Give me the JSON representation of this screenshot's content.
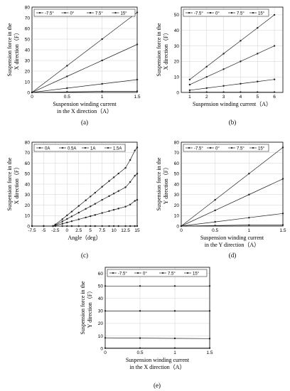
{
  "chart_data": [
    {
      "type": "line",
      "panel_label": "(a)",
      "xlabel_lines": [
        "Suspension winding current",
        "in the X direction（A）"
      ],
      "ylabel_lines": [
        "Suspension force in the",
        "X direction（F）"
      ],
      "xlim": [
        0,
        1.5
      ],
      "ylim": [
        0,
        80
      ],
      "xticks": [
        "0",
        "0.5",
        "1",
        "1.5"
      ],
      "yticks": [
        "0",
        "10",
        "20",
        "30",
        "40",
        "50",
        "60",
        "70",
        "80"
      ],
      "grid": true,
      "legend_position": "top",
      "x": [
        0,
        0.5,
        1,
        1.5
      ],
      "series": [
        {
          "name": "-7.5°",
          "marker": "dot",
          "values": [
            0,
            25,
            50,
            75
          ]
        },
        {
          "name": "0°",
          "marker": "dot",
          "values": [
            0,
            15,
            30,
            45
          ]
        },
        {
          "name": "7.5°",
          "marker": "dot",
          "values": [
            0,
            4,
            8,
            12
          ]
        },
        {
          "name": "15°",
          "marker": "dot",
          "values": [
            0,
            0.5,
            1,
            1
          ]
        }
      ]
    },
    {
      "type": "line",
      "panel_label": "(b)",
      "xlabel_lines": [
        "Suspension winding current（A）"
      ],
      "ylabel_lines": [
        "Suspension force in the",
        "X direction（F）"
      ],
      "xlim": [
        0.5,
        6.5
      ],
      "ylim": [
        0,
        55
      ],
      "xticks": [
        "1",
        "2",
        "3",
        "4",
        "5",
        "6"
      ],
      "yticks": [
        "0",
        "10",
        "20",
        "30",
        "40",
        "50"
      ],
      "grid": true,
      "legend_position": "top",
      "x": [
        1,
        2,
        3,
        4,
        5,
        6
      ],
      "series": [
        {
          "name": "-7.5°",
          "marker": "dot",
          "values": [
            8.3,
            16.6,
            25,
            33.3,
            41.6,
            50
          ]
        },
        {
          "name": "0°",
          "marker": "dot",
          "values": [
            5,
            10,
            15,
            20,
            25,
            30
          ]
        },
        {
          "name": "7.5°",
          "marker": "dot",
          "values": [
            1.4,
            2.8,
            4.2,
            5.6,
            7,
            8.4
          ]
        },
        {
          "name": "15°",
          "marker": "dot",
          "values": [
            0.1,
            0.2,
            0.2,
            0.2,
            0.2,
            0.2
          ]
        }
      ]
    },
    {
      "type": "line",
      "panel_label": "(c)",
      "xlabel_lines": [
        "Angle（deg）"
      ],
      "ylabel_lines": [
        "Suspension force in the",
        "X direction（F）"
      ],
      "xlim": [
        -7.5,
        15
      ],
      "ylim": [
        0,
        80
      ],
      "xticks": [
        "-7.5",
        "-5",
        "-2.5",
        "0",
        "2.5",
        "5",
        "7.5",
        "10",
        "12.5",
        "15"
      ],
      "yticks": [
        "0",
        "10",
        "20",
        "30",
        "40",
        "50",
        "60",
        "70",
        "80"
      ],
      "grid": true,
      "legend_position": "top",
      "x": [
        -7.5,
        -5,
        -3,
        -2.5,
        -1,
        0,
        1,
        2.5,
        4,
        5,
        6,
        7.5,
        9,
        10,
        11,
        12.5,
        13.5,
        14.5,
        15
      ],
      "series": [
        {
          "name": "0A",
          "marker": "dot",
          "values": [
            0,
            0,
            0,
            0,
            0,
            0,
            0,
            0,
            0,
            0,
            0,
            0,
            0,
            0,
            0,
            0,
            0,
            0,
            0
          ]
        },
        {
          "name": "0.5A",
          "marker": "dot",
          "values": [
            0,
            0,
            0,
            0.5,
            2.2,
            3.4,
            4.6,
            6.4,
            8.2,
            9.4,
            10.6,
            12.5,
            14.3,
            15.5,
            16.7,
            18.5,
            20.5,
            24,
            25
          ]
        },
        {
          "name": "1A",
          "marker": "dot",
          "values": [
            0,
            0,
            0,
            1,
            4.4,
            6.8,
            9.2,
            12.8,
            16.4,
            18.8,
            21.2,
            25,
            28.6,
            31,
            33.4,
            37,
            42,
            48,
            50
          ]
        },
        {
          "name": "1.5A",
          "marker": "dot",
          "values": [
            0,
            0,
            0,
            1.5,
            6.6,
            10.2,
            13.8,
            19.2,
            24.6,
            28.2,
            31.8,
            37.5,
            42.9,
            46.5,
            50.1,
            55.5,
            63,
            72,
            75
          ]
        }
      ]
    },
    {
      "type": "line",
      "panel_label": "(d)",
      "xlabel_lines": [
        "Suspension winding current",
        "in the Y direction（A）"
      ],
      "ylabel_lines": [
        "Suspension force in the",
        "Y direction（F）"
      ],
      "xlim": [
        0,
        1.5
      ],
      "ylim": [
        0,
        80
      ],
      "xticks": [
        "0",
        "0.5",
        "1",
        "1.5"
      ],
      "yticks": [
        "0",
        "10",
        "20",
        "30",
        "40",
        "50",
        "60",
        "70",
        "80"
      ],
      "grid": true,
      "legend_position": "top",
      "x": [
        0,
        0.5,
        1,
        1.5
      ],
      "series": [
        {
          "name": "-7.5°",
          "marker": "dot",
          "values": [
            0,
            25,
            50,
            75
          ]
        },
        {
          "name": "0°",
          "marker": "dot",
          "values": [
            0,
            15,
            30,
            45
          ]
        },
        {
          "name": "7.5°",
          "marker": "dot",
          "values": [
            0,
            4,
            8,
            12
          ]
        },
        {
          "name": "15°",
          "marker": "dot",
          "values": [
            0,
            0.5,
            1,
            1
          ]
        }
      ]
    },
    {
      "type": "line",
      "panel_label": "(e)",
      "xlabel_lines": [
        "Suspension winding current",
        "in the X direction（A）"
      ],
      "ylabel_lines": [
        "Suspension force in the",
        "Y direction（F）"
      ],
      "xlim": [
        0,
        1.5
      ],
      "ylim": [
        0,
        65
      ],
      "xticks": [
        "0",
        "0.5",
        "1",
        "1.5"
      ],
      "yticks": [
        "0",
        "10",
        "20",
        "30",
        "40",
        "50",
        "60"
      ],
      "grid": true,
      "legend_position": "top",
      "x": [
        0,
        0.5,
        1,
        1.5
      ],
      "series": [
        {
          "name": "-7.5°",
          "marker": "dot",
          "values": [
            50,
            50,
            50,
            50
          ]
        },
        {
          "name": "0°",
          "marker": "dot",
          "values": [
            30,
            30,
            30,
            30
          ]
        },
        {
          "name": "7.5°",
          "marker": "dot",
          "values": [
            8.4,
            8.2,
            8,
            7.8
          ]
        },
        {
          "name": "15°",
          "marker": "dot",
          "values": [
            0.2,
            0.2,
            0.2,
            0.2
          ]
        }
      ]
    }
  ]
}
